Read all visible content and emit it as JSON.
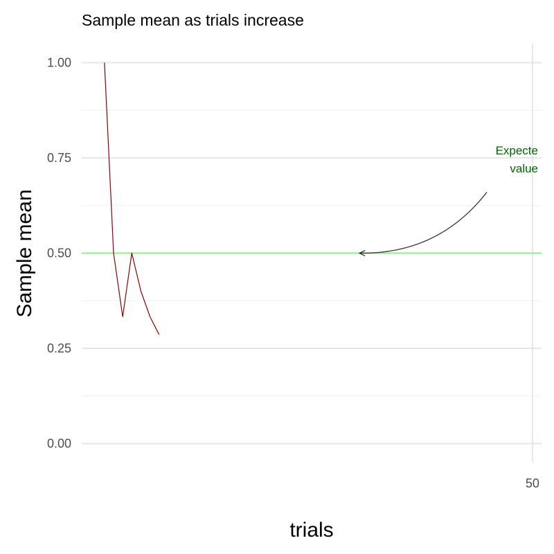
{
  "chart_data": {
    "type": "line",
    "title": "Sample mean as trials increase",
    "xlabel": "trials",
    "ylabel": "Sample mean",
    "xlim": [
      0.5,
      51
    ],
    "ylim": [
      -0.05,
      1.05
    ],
    "x_ticks": [
      50
    ],
    "x_tick_labels": [
      "50"
    ],
    "y_ticks": [
      0,
      0.25,
      0.5,
      0.75,
      1
    ],
    "y_tick_labels": [
      "0.00",
      "0.25",
      "0.50",
      "0.75",
      "1.00"
    ],
    "y_minor_ticks": [
      0.125,
      0.375,
      0.625,
      0.875
    ],
    "grid": true,
    "series": [
      {
        "x": [
          3,
          4,
          5,
          6,
          7,
          8
        ],
        "y": [
          1.0,
          0.5,
          0.333,
          0.5,
          0.4,
          0.333
        ],
        "color": "#8B0000"
      }
    ],
    "points": [
      {
        "x": 9,
        "y": 0.286
      }
    ],
    "reference_line": {
      "y": 0.5,
      "color": "#90EE90"
    },
    "annotation": {
      "lines": [
        "Expecte",
        "value"
      ],
      "color": "#006400",
      "arrow_from": {
        "x": 45,
        "y": 0.66
      },
      "arrow_to": {
        "x": 31,
        "y": 0.5
      }
    }
  }
}
